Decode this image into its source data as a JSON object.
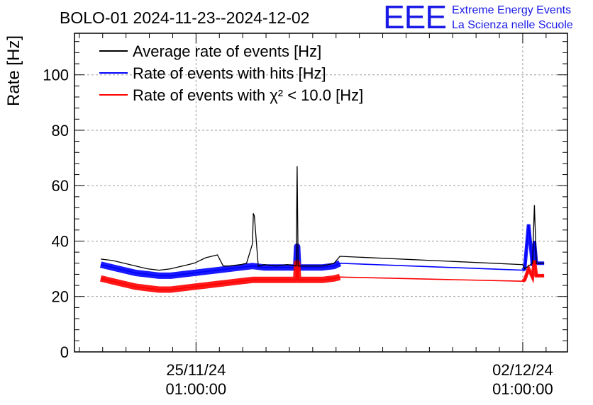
{
  "header": {
    "title": "BOLO-01 2024-11-23--2024-12-02",
    "logo_text": "EEE",
    "logo_line1": "Extreme Energy Events",
    "logo_line2": "La Scienza nelle Scuole"
  },
  "chart_data": {
    "type": "line",
    "title": "BOLO-01 2024-11-23--2024-12-02",
    "ylabel": "Rate [Hz]",
    "xlabel": "",
    "ylim": [
      0,
      115
    ],
    "grid": true,
    "legend_position": "top-left",
    "yticks": [
      0,
      20,
      40,
      60,
      80,
      100
    ],
    "yticklabels": [
      "0",
      "20",
      "40",
      "60",
      "80",
      "100"
    ],
    "xticks": [
      {
        "date": "2024-11-25T01:00:00",
        "label_date": "25/11/24",
        "label_time": "01:00:00"
      },
      {
        "date": "2024-12-02T01:00:00",
        "label_date": "02/12/24",
        "label_time": "01:00:00"
      }
    ],
    "xlim": [
      "2024-11-22T10:30:00",
      "2024-12-03T00:00:00"
    ],
    "series": [
      {
        "name": "Average rate of events [Hz]",
        "color": "#000000",
        "x": [
          "2024-11-23T00:00:00",
          "2024-11-23T06:00:00",
          "2024-11-23T12:00:00",
          "2024-11-23T18:00:00",
          "2024-11-24T00:00:00",
          "2024-11-24T06:00:00",
          "2024-11-24T12:00:00",
          "2024-11-24T18:00:00",
          "2024-11-25T00:00:00",
          "2024-11-25T06:00:00",
          "2024-11-25T12:00:00",
          "2024-11-25T15:00:00",
          "2024-11-25T18:00:00",
          "2024-11-26T00:00:00",
          "2024-11-26T03:00:00",
          "2024-11-26T06:00:00",
          "2024-11-26T06:30:00",
          "2024-11-26T07:00:00",
          "2024-11-26T09:00:00",
          "2024-11-26T10:00:00",
          "2024-11-26T12:00:00",
          "2024-11-26T18:00:00",
          "2024-11-27T00:00:00",
          "2024-11-27T04:30:00",
          "2024-11-27T05:00:00",
          "2024-11-27T05:30:00",
          "2024-11-27T12:00:00",
          "2024-11-27T18:00:00",
          "2024-11-28T00:00:00",
          "2024-11-28T03:00:00",
          "2024-12-02T01:00:00",
          "2024-12-02T02:00:00",
          "2024-12-02T06:00:00",
          "2024-12-02T07:00:00",
          "2024-12-02T08:00:00",
          "2024-12-02T12:00:00"
        ],
        "y": [
          33.5,
          33,
          32,
          31,
          30,
          29.5,
          30,
          31,
          32,
          34,
          35,
          31,
          31,
          31.5,
          32,
          39,
          50,
          49,
          31,
          31,
          31.5,
          31,
          31.5,
          31,
          67,
          31,
          31,
          31,
          32,
          34.5,
          31.5,
          30,
          32,
          53,
          32,
          32
        ]
      },
      {
        "name": "Rate of events with hits [Hz]",
        "color": "#0000ff",
        "x": [
          "2024-11-23T00:00:00",
          "2024-11-23T06:00:00",
          "2024-11-23T12:00:00",
          "2024-11-23T18:00:00",
          "2024-11-24T00:00:00",
          "2024-11-24T06:00:00",
          "2024-11-24T12:00:00",
          "2024-11-24T18:00:00",
          "2024-11-25T00:00:00",
          "2024-11-25T06:00:00",
          "2024-11-25T12:00:00",
          "2024-11-25T18:00:00",
          "2024-11-26T00:00:00",
          "2024-11-26T06:00:00",
          "2024-11-26T12:00:00",
          "2024-11-26T18:00:00",
          "2024-11-27T00:00:00",
          "2024-11-27T04:30:00",
          "2024-11-27T05:00:00",
          "2024-11-27T05:30:00",
          "2024-11-27T12:00:00",
          "2024-11-27T18:00:00",
          "2024-11-28T00:00:00",
          "2024-11-28T03:00:00",
          "2024-12-02T01:00:00",
          "2024-12-02T02:00:00",
          "2024-12-02T04:00:00",
          "2024-12-02T06:00:00",
          "2024-12-02T07:00:00",
          "2024-12-02T08:00:00",
          "2024-12-02T12:00:00"
        ],
        "y": [
          31.5,
          30.5,
          29.5,
          28.5,
          28,
          27.5,
          27.5,
          28,
          28.5,
          29,
          29.5,
          30,
          30.5,
          31,
          30.5,
          30.5,
          30.5,
          30.5,
          38,
          30.5,
          30.5,
          30.5,
          31,
          32,
          29.5,
          30,
          46,
          31,
          40,
          32,
          32
        ]
      },
      {
        "name": "Rate of events with χ² < 10.0 [Hz]",
        "color": "#ff0000",
        "x": [
          "2024-11-23T00:00:00",
          "2024-11-23T06:00:00",
          "2024-11-23T12:00:00",
          "2024-11-23T18:00:00",
          "2024-11-24T00:00:00",
          "2024-11-24T06:00:00",
          "2024-11-24T12:00:00",
          "2024-11-24T18:00:00",
          "2024-11-25T00:00:00",
          "2024-11-25T06:00:00",
          "2024-11-25T12:00:00",
          "2024-11-25T18:00:00",
          "2024-11-26T00:00:00",
          "2024-11-26T06:00:00",
          "2024-11-26T12:00:00",
          "2024-11-26T18:00:00",
          "2024-11-27T00:00:00",
          "2024-11-27T04:30:00",
          "2024-11-27T05:00:00",
          "2024-11-27T05:30:00",
          "2024-11-27T12:00:00",
          "2024-11-27T18:00:00",
          "2024-11-28T00:00:00",
          "2024-11-28T03:00:00",
          "2024-12-02T01:00:00",
          "2024-12-02T02:00:00",
          "2024-12-02T04:00:00",
          "2024-12-02T06:00:00",
          "2024-12-02T07:00:00",
          "2024-12-02T08:00:00",
          "2024-12-02T12:00:00"
        ],
        "y": [
          26.5,
          25.5,
          24.5,
          23.5,
          23,
          22.5,
          22.5,
          23,
          23.5,
          24,
          24.5,
          25,
          25.5,
          26,
          26,
          26,
          26,
          26,
          32,
          26,
          26,
          26,
          26.5,
          27,
          25.5,
          26,
          30,
          27,
          33,
          27.5,
          27.5
        ]
      }
    ]
  }
}
